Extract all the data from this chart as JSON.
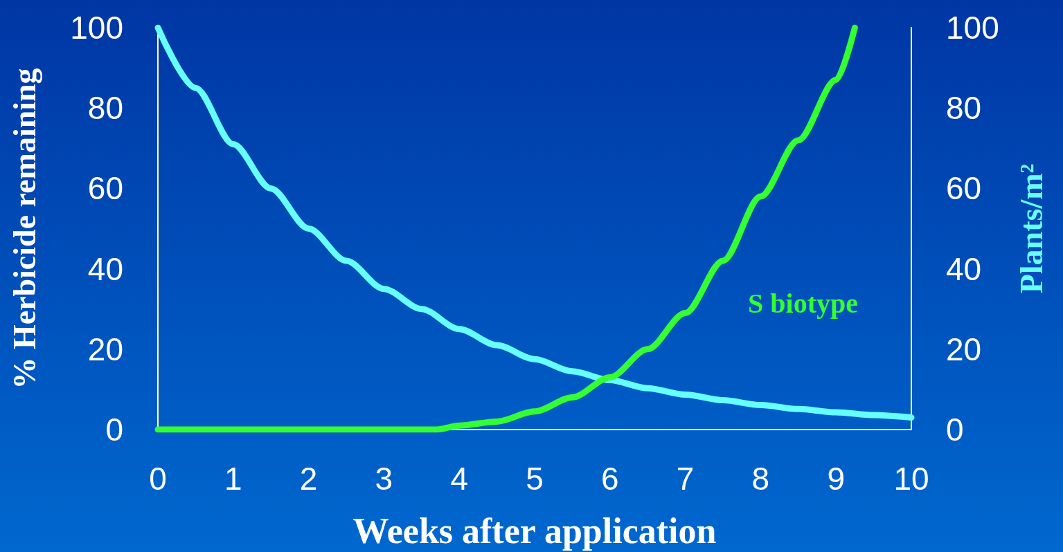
{
  "chart_data": {
    "type": "line",
    "xlabel": "Weeks after application",
    "ylabel": "% Herbicide remaining",
    "y2label": "Plants/m²",
    "xlim": [
      0,
      10
    ],
    "xticks": [
      0,
      1,
      2,
      3,
      4,
      5,
      6,
      7,
      8,
      9,
      10
    ],
    "ylim": [
      0,
      100
    ],
    "yticks": [
      0,
      20,
      40,
      60,
      80,
      100
    ],
    "y2lim": [
      0,
      100
    ],
    "y2ticks": [
      0,
      20,
      40,
      60,
      80,
      100
    ],
    "grid": false,
    "line_style": "solid",
    "series": [
      {
        "color": "#66ffff",
        "x": [
          0,
          0.5,
          1,
          1.5,
          2,
          2.5,
          3,
          3.5,
          4,
          4.5,
          5,
          5.5,
          6,
          6.5,
          7,
          7.5,
          8,
          8.5,
          9,
          9.5,
          10
        ],
        "values": [
          100,
          85,
          71,
          60,
          50,
          42,
          35,
          30,
          25,
          21,
          17.5,
          14.5,
          12.3,
          10.3,
          8.7,
          7.3,
          6.1,
          5.1,
          4.3,
          3.6,
          3
        ]
      },
      {
        "color": "#33ff33",
        "x": [
          0,
          1,
          2,
          3,
          3.7,
          4,
          4.5,
          5,
          5.5,
          6,
          6.5,
          7,
          7.5,
          8,
          8.5,
          9,
          9.25
        ],
        "values": [
          0,
          0,
          0,
          0,
          0,
          1,
          2,
          4.5,
          8,
          13,
          20,
          29,
          42,
          58,
          72,
          87,
          100
        ]
      }
    ],
    "annotations": [
      "S biotype"
    ]
  }
}
